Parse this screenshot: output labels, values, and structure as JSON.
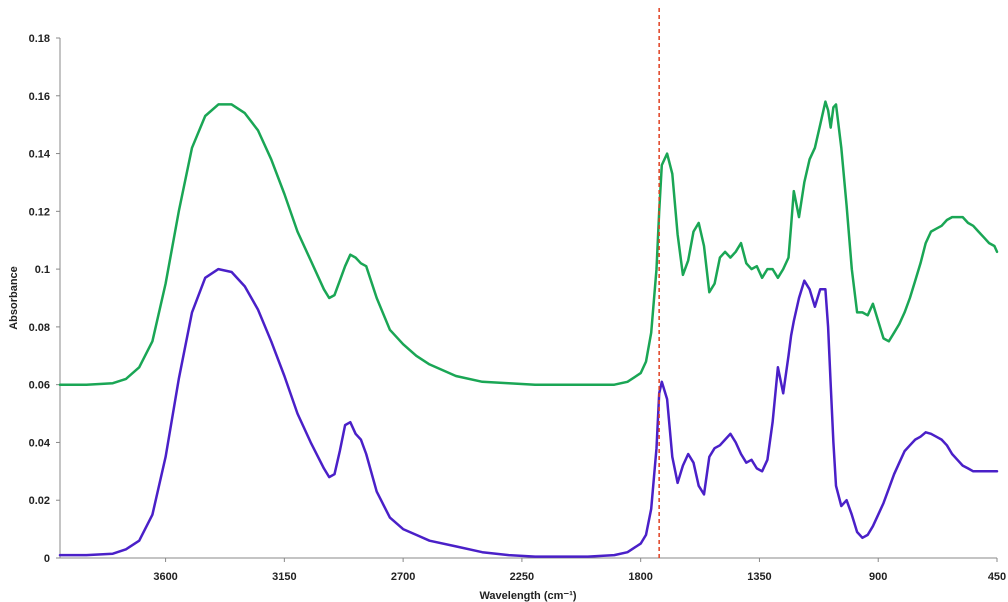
{
  "chart_data": {
    "type": "line",
    "title": "",
    "xlabel": "Wavelength (cm⁻¹)",
    "ylabel": "Absorbance",
    "xlim": [
      4000,
      450
    ],
    "ylim": [
      0,
      0.18
    ],
    "x_ticks": [
      "3600",
      "3150",
      "2700",
      "2250",
      "1800",
      "1350",
      "900",
      "450"
    ],
    "y_ticks": [
      "0",
      "0.02",
      "0.04",
      "0.06",
      "0.08",
      "0.1",
      "0.12",
      "0.14",
      "0.16",
      "0.18"
    ],
    "grid": false,
    "legend": "none",
    "reference_line": {
      "x": 1730,
      "color": "#e04020",
      "style": "dashed"
    },
    "series": [
      {
        "color": "#1aa655",
        "x": [
          4000,
          3900,
          3800,
          3750,
          3700,
          3650,
          3600,
          3550,
          3500,
          3450,
          3400,
          3350,
          3300,
          3250,
          3200,
          3150,
          3100,
          3050,
          3000,
          2980,
          2960,
          2940,
          2920,
          2900,
          2880,
          2860,
          2840,
          2800,
          2750,
          2700,
          2650,
          2600,
          2500,
          2400,
          2300,
          2200,
          2100,
          2000,
          1900,
          1850,
          1800,
          1780,
          1760,
          1740,
          1730,
          1720,
          1700,
          1680,
          1660,
          1640,
          1620,
          1600,
          1580,
          1560,
          1540,
          1520,
          1500,
          1480,
          1460,
          1440,
          1420,
          1400,
          1380,
          1360,
          1340,
          1320,
          1300,
          1280,
          1260,
          1240,
          1230,
          1220,
          1200,
          1180,
          1160,
          1140,
          1120,
          1100,
          1090,
          1080,
          1070,
          1060,
          1040,
          1020,
          1000,
          980,
          960,
          940,
          920,
          900,
          880,
          860,
          840,
          820,
          800,
          780,
          760,
          740,
          720,
          700,
          680,
          660,
          640,
          620,
          600,
          580,
          560,
          540,
          520,
          500,
          480,
          460,
          450
        ],
        "y": [
          0.06,
          0.06,
          0.0605,
          0.062,
          0.066,
          0.075,
          0.095,
          0.12,
          0.142,
          0.153,
          0.157,
          0.157,
          0.154,
          0.148,
          0.138,
          0.126,
          0.113,
          0.103,
          0.093,
          0.09,
          0.091,
          0.096,
          0.101,
          0.105,
          0.104,
          0.102,
          0.101,
          0.09,
          0.079,
          0.074,
          0.07,
          0.067,
          0.063,
          0.061,
          0.0605,
          0.06,
          0.06,
          0.06,
          0.06,
          0.061,
          0.064,
          0.068,
          0.078,
          0.1,
          0.12,
          0.136,
          0.14,
          0.133,
          0.112,
          0.098,
          0.103,
          0.113,
          0.116,
          0.108,
          0.092,
          0.095,
          0.104,
          0.106,
          0.104,
          0.106,
          0.109,
          0.102,
          0.1,
          0.101,
          0.097,
          0.1,
          0.1,
          0.097,
          0.1,
          0.104,
          0.115,
          0.127,
          0.118,
          0.13,
          0.138,
          0.142,
          0.15,
          0.158,
          0.155,
          0.149,
          0.156,
          0.157,
          0.142,
          0.122,
          0.1,
          0.085,
          0.085,
          0.084,
          0.088,
          0.082,
          0.076,
          0.075,
          0.078,
          0.081,
          0.085,
          0.09,
          0.096,
          0.102,
          0.109,
          0.113,
          0.114,
          0.115,
          0.117,
          0.118,
          0.118,
          0.118,
          0.116,
          0.115,
          0.113,
          0.111,
          0.109,
          0.108,
          0.106
        ]
      },
      {
        "color": "#4a20c8",
        "x": [
          4000,
          3900,
          3800,
          3750,
          3700,
          3650,
          3600,
          3550,
          3500,
          3450,
          3400,
          3350,
          3300,
          3250,
          3200,
          3150,
          3100,
          3050,
          3000,
          2980,
          2960,
          2940,
          2920,
          2900,
          2880,
          2860,
          2840,
          2800,
          2750,
          2700,
          2650,
          2600,
          2500,
          2400,
          2300,
          2200,
          2100,
          2000,
          1900,
          1850,
          1800,
          1780,
          1760,
          1740,
          1730,
          1720,
          1700,
          1680,
          1660,
          1640,
          1620,
          1600,
          1580,
          1560,
          1540,
          1520,
          1500,
          1480,
          1460,
          1440,
          1420,
          1400,
          1380,
          1360,
          1340,
          1320,
          1300,
          1280,
          1260,
          1240,
          1230,
          1220,
          1200,
          1180,
          1160,
          1140,
          1120,
          1100,
          1090,
          1080,
          1070,
          1060,
          1040,
          1020,
          1000,
          980,
          960,
          940,
          920,
          900,
          880,
          860,
          840,
          820,
          800,
          780,
          760,
          740,
          720,
          700,
          680,
          660,
          640,
          620,
          600,
          580,
          560,
          540,
          520,
          500,
          480,
          460,
          450
        ],
        "y": [
          0.001,
          0.001,
          0.0015,
          0.003,
          0.006,
          0.015,
          0.035,
          0.062,
          0.085,
          0.097,
          0.1,
          0.099,
          0.094,
          0.086,
          0.075,
          0.063,
          0.05,
          0.04,
          0.031,
          0.028,
          0.029,
          0.037,
          0.046,
          0.047,
          0.043,
          0.041,
          0.036,
          0.023,
          0.014,
          0.01,
          0.008,
          0.006,
          0.004,
          0.002,
          0.001,
          0.0005,
          0.0005,
          0.0005,
          0.001,
          0.002,
          0.005,
          0.008,
          0.017,
          0.038,
          0.057,
          0.061,
          0.055,
          0.035,
          0.026,
          0.032,
          0.036,
          0.033,
          0.025,
          0.022,
          0.035,
          0.038,
          0.039,
          0.041,
          0.043,
          0.04,
          0.036,
          0.033,
          0.034,
          0.031,
          0.03,
          0.034,
          0.047,
          0.066,
          0.057,
          0.07,
          0.077,
          0.082,
          0.09,
          0.096,
          0.093,
          0.087,
          0.093,
          0.093,
          0.08,
          0.06,
          0.04,
          0.025,
          0.018,
          0.02,
          0.015,
          0.009,
          0.007,
          0.008,
          0.011,
          0.015,
          0.019,
          0.024,
          0.029,
          0.033,
          0.037,
          0.039,
          0.041,
          0.042,
          0.0435,
          0.043,
          0.042,
          0.041,
          0.039,
          0.036,
          0.034,
          0.032,
          0.031,
          0.03,
          0.03,
          0.03,
          0.03,
          0.03,
          0.03
        ]
      }
    ]
  }
}
